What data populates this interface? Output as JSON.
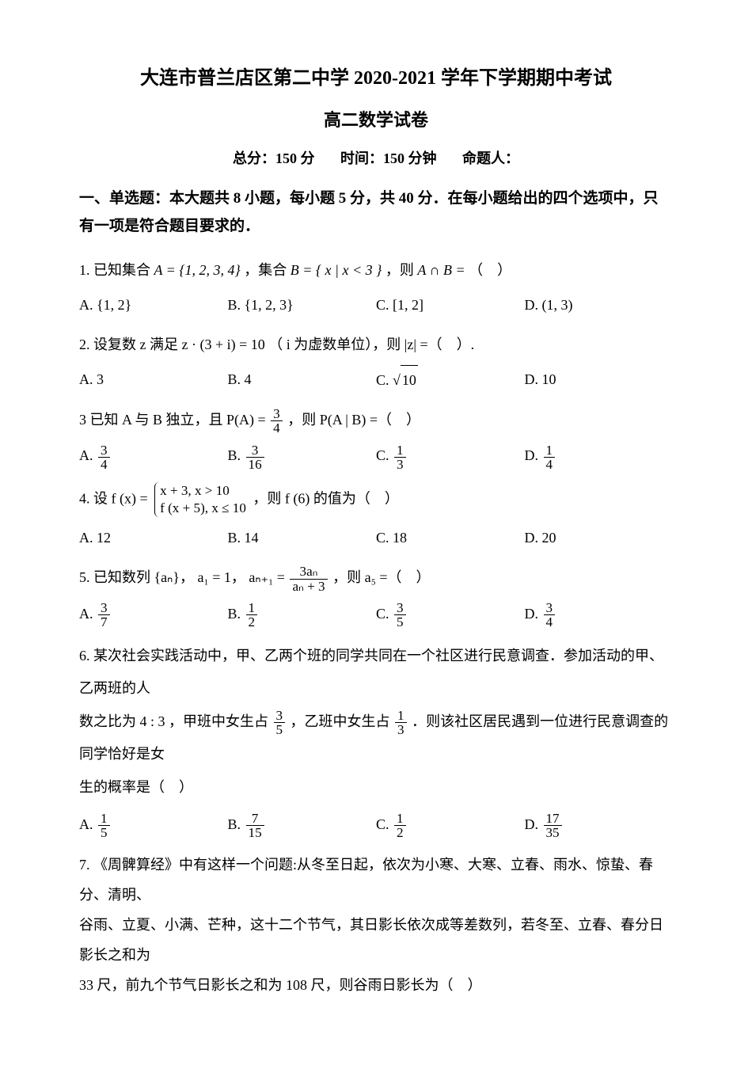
{
  "header": {
    "title1": "大连市普兰店区第二中学 2020-2021 学年下学期期中考试",
    "title2": "高二数学试卷",
    "meta_score": "总分：150 分",
    "meta_time": "时间：150 分钟",
    "meta_author": "命题人："
  },
  "section1": {
    "header": "一、单选题：本大题共 8 小题，每小题 5 分，共 40 分．在每小题给出的四个选项中，只有一项是符合题目要求的．"
  },
  "q1": {
    "pre": "1. 已知集合 ",
    "setA": "A = {1, 2, 3, 4}",
    "mid1": "，集合 ",
    "setB": "B = { x | x < 3 }",
    "mid2": "，则 ",
    "expr": "A ∩ B =",
    "tail": "（　）",
    "optA": "A.  {1, 2}",
    "optB": "B.  {1, 2, 3}",
    "optC": "C.  [1, 2]",
    "optD": "D.  (1, 3)"
  },
  "q2": {
    "text": "2. 设复数 z 满足 z · (3 + i) = 10 （ i 为虚数单位），则 |z| =（　）.",
    "optA": "A. 3",
    "optB": "B. 4",
    "optC_pre": "C.  ",
    "optC_val": "10",
    "optD": "D. 10"
  },
  "q3": {
    "pre": "3  已知 A 与 B 独立，且 P(A) = ",
    "frac_n": "3",
    "frac_d": "4",
    "mid": "，则 P(A | B) =（　）",
    "A_n": "3",
    "A_d": "4",
    "B_n": "3",
    "B_d": "16",
    "C_n": "1",
    "C_d": "3",
    "D_n": "1",
    "D_d": "4"
  },
  "q4": {
    "pre": "4. 设 f (x) = ",
    "case1": "x + 3, x > 10",
    "case2": "f (x + 5), x ≤ 10",
    "tail": "，则 f (6) 的值为（　）",
    "optA": "A. 12",
    "optB": "B. 14",
    "optC": "C. 18",
    "optD": "D. 20"
  },
  "q5": {
    "pre": "5. 已知数列 {aₙ}，  a₁ = 1，  aₙ₊₁ = ",
    "num": "3aₙ",
    "den": "aₙ + 3",
    "tail": "，则 a₅ =（　）",
    "A_n": "3",
    "A_d": "7",
    "B_n": "1",
    "B_d": "2",
    "C_n": "3",
    "C_d": "5",
    "D_n": "3",
    "D_d": "4"
  },
  "q6": {
    "line1_pre": "6. 某次社会实践活动中，甲、乙两个班的同学共同在一个社区进行民意调查．参加活动的甲、乙两班的人",
    "line2_pre": "数之比为 4 : 3 ，甲班中女生占 ",
    "f1_n": "3",
    "f1_d": "5",
    "line2_mid": "，乙班中女生占 ",
    "f2_n": "1",
    "f2_d": "3",
    "line2_tail": "．则该社区居民遇到一位进行民意调查的同学恰好是女",
    "line3": "生的概率是（　）",
    "A_n": "1",
    "A_d": "5",
    "B_n": "7",
    "B_d": "15",
    "C_n": "1",
    "C_d": "2",
    "D_n": "17",
    "D_d": "35"
  },
  "q7": {
    "line1": "7. 《周髀算经》中有这样一个问题:从冬至日起，依次为小寒、大寒、立春、雨水、惊蛰、春分、清明、",
    "line2": "谷雨、立夏、小满、芒种，这十二个节气，其日影长依次成等差数列，若冬至、立春、春分日影长之和为",
    "line3": "33 尺，前九个节气日影长之和为 108 尺，则谷雨日影长为（　）"
  }
}
